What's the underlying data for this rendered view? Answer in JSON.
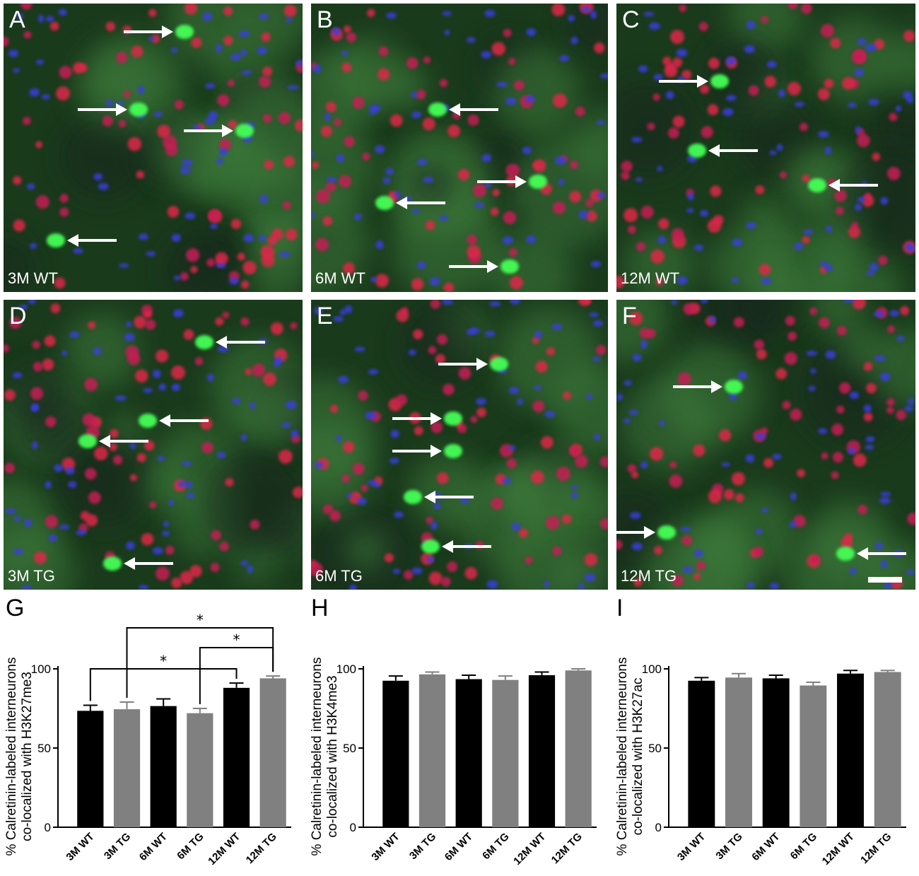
{
  "panels": [
    {
      "label": "A",
      "caption": "3M WT",
      "arrows": [
        [
          240,
          45,
          "r"
        ],
        [
          175,
          155,
          "r"
        ],
        [
          325,
          185,
          "r"
        ],
        [
          90,
          340,
          "l"
        ]
      ]
    },
    {
      "label": "B",
      "caption": "6M WT",
      "arrows": [
        [
          195,
          155,
          "l"
        ],
        [
          305,
          257,
          "r"
        ],
        [
          120,
          287,
          "l"
        ],
        [
          265,
          377,
          "r"
        ]
      ]
    },
    {
      "label": "C",
      "caption": "12M WT",
      "arrows": [
        [
          130,
          115,
          "r"
        ],
        [
          130,
          213,
          "l"
        ],
        [
          300,
          262,
          "l"
        ]
      ]
    },
    {
      "label": "D",
      "caption": "3M TG",
      "arrows": [
        [
          300,
          484,
          "l"
        ],
        [
          220,
          595,
          "l"
        ],
        [
          135,
          624,
          "l"
        ],
        [
          170,
          797,
          "l"
        ]
      ]
    },
    {
      "label": "E",
      "caption": "6M TG",
      "arrows": [
        [
          250,
          515,
          "r"
        ],
        [
          185,
          592,
          "r"
        ],
        [
          185,
          638,
          "r"
        ],
        [
          160,
          703,
          "l"
        ],
        [
          185,
          773,
          "l"
        ]
      ]
    },
    {
      "label": "F",
      "caption": "12M TG",
      "arrows": [
        [
          150,
          547,
          "r"
        ],
        [
          55,
          753,
          "r"
        ],
        [
          340,
          783,
          "l"
        ]
      ]
    }
  ],
  "chart_data": [
    {
      "type": "bar",
      "panel_label": "G",
      "ylabel": "% Calretinin-labeled interneurons co-localized with H3K27me3",
      "categories": [
        "3M WT",
        "3M TG",
        "6M WT",
        "6M TG",
        "12M WT",
        "12M TG"
      ],
      "values": [
        73.5,
        74.5,
        76.5,
        72,
        88,
        94
      ],
      "errors": [
        3.5,
        4.5,
        4.5,
        3,
        3,
        1.5
      ],
      "bar_colors": [
        "#000000",
        "#808080",
        "#000000",
        "#808080",
        "#000000",
        "#808080"
      ],
      "ylim": [
        0,
        100
      ],
      "yticks": [
        0,
        50,
        100
      ],
      "significance": [
        {
          "from": 0,
          "to": 4,
          "label": "*"
        },
        {
          "from": 1,
          "to": 5,
          "label": "*"
        },
        {
          "from": 3,
          "to": 5,
          "label": "*"
        }
      ]
    },
    {
      "type": "bar",
      "panel_label": "H",
      "ylabel": "% Calretinin-labeled interneurons co-localized with H3K4me3",
      "categories": [
        "3M WT",
        "3M TG",
        "6M WT",
        "6M TG",
        "12M WT",
        "12M TG"
      ],
      "values": [
        92.5,
        96.5,
        93.5,
        93,
        96,
        99
      ],
      "errors": [
        3,
        1.5,
        2.5,
        2.5,
        2,
        1
      ],
      "bar_colors": [
        "#000000",
        "#808080",
        "#000000",
        "#808080",
        "#000000",
        "#808080"
      ],
      "ylim": [
        0,
        100
      ],
      "yticks": [
        0,
        50,
        100
      ],
      "significance": []
    },
    {
      "type": "bar",
      "panel_label": "I",
      "ylabel": "% Calretinin-labeled interneurons co-localized with H3K27ac",
      "categories": [
        "3M WT",
        "3M TG",
        "6M WT",
        "6M TG",
        "12M WT",
        "12M TG"
      ],
      "values": [
        92.5,
        94.5,
        94,
        89.5,
        97,
        98
      ],
      "errors": [
        2,
        2.5,
        2,
        2,
        2,
        1
      ],
      "bar_colors": [
        "#000000",
        "#808080",
        "#000000",
        "#808080",
        "#000000",
        "#808080"
      ],
      "ylim": [
        0,
        100
      ],
      "yticks": [
        0,
        50,
        100
      ],
      "significance": []
    }
  ]
}
